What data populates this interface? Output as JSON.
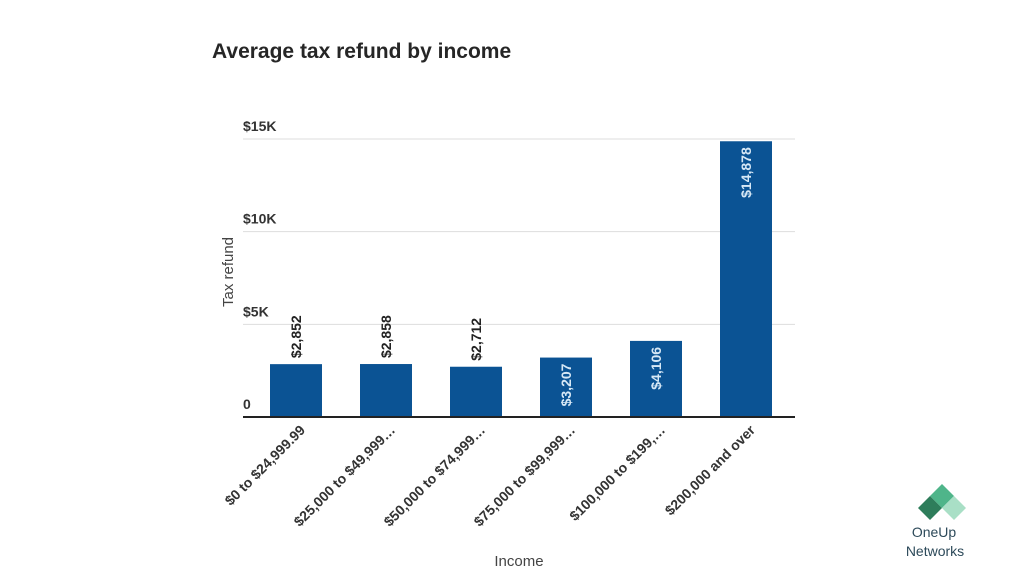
{
  "chart_data": {
    "type": "bar",
    "title": "Average tax refund by income",
    "xlabel": "Income",
    "ylabel": "Tax refund",
    "categories": [
      "$0 to $24,999.99",
      "$25,000 to $49,999…",
      "$50,000 to $74,999…",
      "$75,000 to $99,999…",
      "$100,000 to $199,…",
      "$200,000 and over"
    ],
    "values": [
      2852,
      2858,
      2712,
      3207,
      4106,
      14878
    ],
    "data_labels": [
      "$2,852",
      "$2,858",
      "$2,712",
      "$3,207",
      "$4,106",
      "$14,878"
    ],
    "ylim": [
      0,
      15000
    ],
    "yticks": [
      0,
      5000,
      10000,
      15000
    ],
    "ytick_labels": [
      "0",
      "$5K",
      "$10K",
      "$15K"
    ],
    "grid": true,
    "colors": {
      "bar": "#0b5394",
      "grid": "#dddddd",
      "axis": "#222222",
      "label_outside": "#222222",
      "label_inside": "#d7e8f6"
    }
  },
  "logo": {
    "line1": "OneUp",
    "line2": "Networks",
    "icon": "oneup-diamond-logo-icon",
    "colors": [
      "#2e7d5b",
      "#4fb58a",
      "#9ad9bc"
    ]
  }
}
